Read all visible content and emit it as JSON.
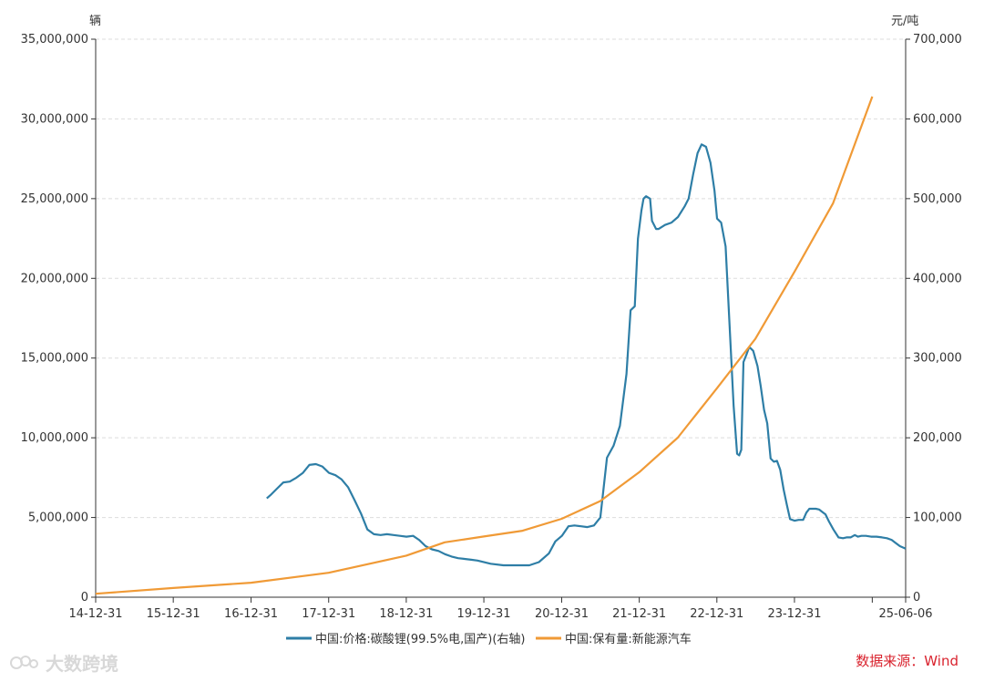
{
  "chart_data": {
    "type": "line",
    "left_axis": {
      "unit": "辆",
      "ylim": [
        0,
        35000000
      ],
      "ticks": [
        "0",
        "5,000,000",
        "10,000,000",
        "15,000,000",
        "20,000,000",
        "25,000,000",
        "30,000,000",
        "35,000,000"
      ]
    },
    "right_axis": {
      "unit": "元/吨",
      "ylim": [
        0,
        700000
      ],
      "ticks": [
        "0",
        "100,000",
        "200,000",
        "300,000",
        "400,000",
        "500,000",
        "600,000",
        "700,000"
      ]
    },
    "x_ticks": [
      "14-12-31",
      "15-12-31",
      "16-12-31",
      "17-12-31",
      "18-12-31",
      "19-12-31",
      "20-12-31",
      "21-12-31",
      "22-12-31",
      "23-12-31",
      "25-06-06"
    ],
    "grid": "horizontal dashed",
    "legend_position": "bottom",
    "series": [
      {
        "name": "中国:价格:碳酸锂(99.5%电,国产)(右轴)",
        "axis": "right",
        "color": "#2e7ea6",
        "points": [
          [
            "2017-03-15",
            124000
          ],
          [
            "2017-04-01",
            128000
          ],
          [
            "2017-05-01",
            136000
          ],
          [
            "2017-06-01",
            144000
          ],
          [
            "2017-07-01",
            145000
          ],
          [
            "2017-08-01",
            150000
          ],
          [
            "2017-09-01",
            156000
          ],
          [
            "2017-10-01",
            166000
          ],
          [
            "2017-11-01",
            167000
          ],
          [
            "2017-12-01",
            164000
          ],
          [
            "2018-01-01",
            156000
          ],
          [
            "2018-02-01",
            153000
          ],
          [
            "2018-03-01",
            148000
          ],
          [
            "2018-04-01",
            138000
          ],
          [
            "2018-05-01",
            122000
          ],
          [
            "2018-06-01",
            105000
          ],
          [
            "2018-07-01",
            85000
          ],
          [
            "2018-08-01",
            79000
          ],
          [
            "2018-09-01",
            78000
          ],
          [
            "2018-10-01",
            79000
          ],
          [
            "2018-11-01",
            78000
          ],
          [
            "2018-12-01",
            77000
          ],
          [
            "2019-01-01",
            76000
          ],
          [
            "2019-02-01",
            77000
          ],
          [
            "2019-03-01",
            72000
          ],
          [
            "2019-04-01",
            64000
          ],
          [
            "2019-05-01",
            60000
          ],
          [
            "2019-06-01",
            58000
          ],
          [
            "2019-07-01",
            54000
          ],
          [
            "2019-08-01",
            51000
          ],
          [
            "2019-09-01",
            49000
          ],
          [
            "2019-10-01",
            48000
          ],
          [
            "2019-11-01",
            47000
          ],
          [
            "2019-12-01",
            46000
          ],
          [
            "2020-02-01",
            42000
          ],
          [
            "2020-04-01",
            40000
          ],
          [
            "2020-06-01",
            40000
          ],
          [
            "2020-08-01",
            40000
          ],
          [
            "2020-09-15",
            44000
          ],
          [
            "2020-11-01",
            55000
          ],
          [
            "2020-12-01",
            70000
          ],
          [
            "2021-01-01",
            77000
          ],
          [
            "2021-02-01",
            89000
          ],
          [
            "2021-03-01",
            90000
          ],
          [
            "2021-04-01",
            89000
          ],
          [
            "2021-05-01",
            88000
          ],
          [
            "2021-06-01",
            90000
          ],
          [
            "2021-07-01",
            100000
          ],
          [
            "2021-08-01",
            175000
          ],
          [
            "2021-09-01",
            190000
          ],
          [
            "2021-10-01",
            215000
          ],
          [
            "2021-11-01",
            280000
          ],
          [
            "2021-11-20",
            360000
          ],
          [
            "2021-12-10",
            365000
          ],
          [
            "2021-12-25",
            450000
          ],
          [
            "2022-01-10",
            485000
          ],
          [
            "2022-01-20",
            500000
          ],
          [
            "2022-02-01",
            503000
          ],
          [
            "2022-02-20",
            500000
          ],
          [
            "2022-03-01",
            472000
          ],
          [
            "2022-03-20",
            462000
          ],
          [
            "2022-04-01",
            462000
          ],
          [
            "2022-05-01",
            467000
          ],
          [
            "2022-06-01",
            470000
          ],
          [
            "2022-07-01",
            477000
          ],
          [
            "2022-08-01",
            490000
          ],
          [
            "2022-08-20",
            500000
          ],
          [
            "2022-09-10",
            530000
          ],
          [
            "2022-10-01",
            557000
          ],
          [
            "2022-10-20",
            568000
          ],
          [
            "2022-11-10",
            565000
          ],
          [
            "2022-12-01",
            545000
          ],
          [
            "2022-12-20",
            510000
          ],
          [
            "2023-01-01",
            475000
          ],
          [
            "2023-01-20",
            470000
          ],
          [
            "2023-02-10",
            440000
          ],
          [
            "2023-03-01",
            340000
          ],
          [
            "2023-03-20",
            240000
          ],
          [
            "2023-04-05",
            180000
          ],
          [
            "2023-04-15",
            178000
          ],
          [
            "2023-04-25",
            185000
          ],
          [
            "2023-05-05",
            295000
          ],
          [
            "2023-05-20",
            305000
          ],
          [
            "2023-06-01",
            314000
          ],
          [
            "2023-06-20",
            309000
          ],
          [
            "2023-07-10",
            290000
          ],
          [
            "2023-07-25",
            265000
          ],
          [
            "2023-08-10",
            235000
          ],
          [
            "2023-08-25",
            218000
          ],
          [
            "2023-09-10",
            174000
          ],
          [
            "2023-09-25",
            170000
          ],
          [
            "2023-10-10",
            171000
          ],
          [
            "2023-10-25",
            160000
          ],
          [
            "2023-11-10",
            135000
          ],
          [
            "2023-11-25",
            116000
          ],
          [
            "2023-12-10",
            98000
          ],
          [
            "2024-01-01",
            96000
          ],
          [
            "2024-01-20",
            97000
          ],
          [
            "2024-02-10",
            97000
          ],
          [
            "2024-02-25",
            106000
          ],
          [
            "2024-03-10",
            111000
          ],
          [
            "2024-03-25",
            111000
          ],
          [
            "2024-04-10",
            111000
          ],
          [
            "2024-04-25",
            110000
          ],
          [
            "2024-05-10",
            107000
          ],
          [
            "2024-05-25",
            104000
          ],
          [
            "2024-06-10",
            95000
          ],
          [
            "2024-07-01",
            85000
          ],
          [
            "2024-07-25",
            75000
          ],
          [
            "2024-08-15",
            74000
          ],
          [
            "2024-09-01",
            75000
          ],
          [
            "2024-09-20",
            75000
          ],
          [
            "2024-10-10",
            78000
          ],
          [
            "2024-10-25",
            76000
          ],
          [
            "2024-11-10",
            77000
          ],
          [
            "2024-12-01",
            77000
          ],
          [
            "2024-12-25",
            76000
          ],
          [
            "2025-01-20",
            76000
          ],
          [
            "2025-02-15",
            75000
          ],
          [
            "2025-03-10",
            74000
          ],
          [
            "2025-04-01",
            72000
          ],
          [
            "2025-04-20",
            68000
          ],
          [
            "2025-05-10",
            64000
          ],
          [
            "2025-06-06",
            61000
          ]
        ]
      },
      {
        "name": "中国:保有量:新能源汽车",
        "axis": "left",
        "color": "#f09a36",
        "points": [
          [
            "2014-12-31",
            220000
          ],
          [
            "2015-12-31",
            580000
          ],
          [
            "2016-12-31",
            910000
          ],
          [
            "2017-12-31",
            1530000
          ],
          [
            "2018-12-31",
            2610000
          ],
          [
            "2019-06-30",
            3440000
          ],
          [
            "2019-12-31",
            3810000
          ],
          [
            "2020-06-30",
            4170000
          ],
          [
            "2020-12-31",
            4920000
          ],
          [
            "2021-06-30",
            6030000
          ],
          [
            "2021-12-31",
            7840000
          ],
          [
            "2022-06-30",
            10010000
          ],
          [
            "2022-12-31",
            13100000
          ],
          [
            "2023-06-30",
            16200000
          ],
          [
            "2023-12-31",
            20410000
          ],
          [
            "2024-06-30",
            24720000
          ],
          [
            "2024-12-31",
            31400000
          ]
        ]
      }
    ]
  },
  "footer": {
    "source": "数据来源：Wind",
    "watermark": "大数跨境"
  }
}
